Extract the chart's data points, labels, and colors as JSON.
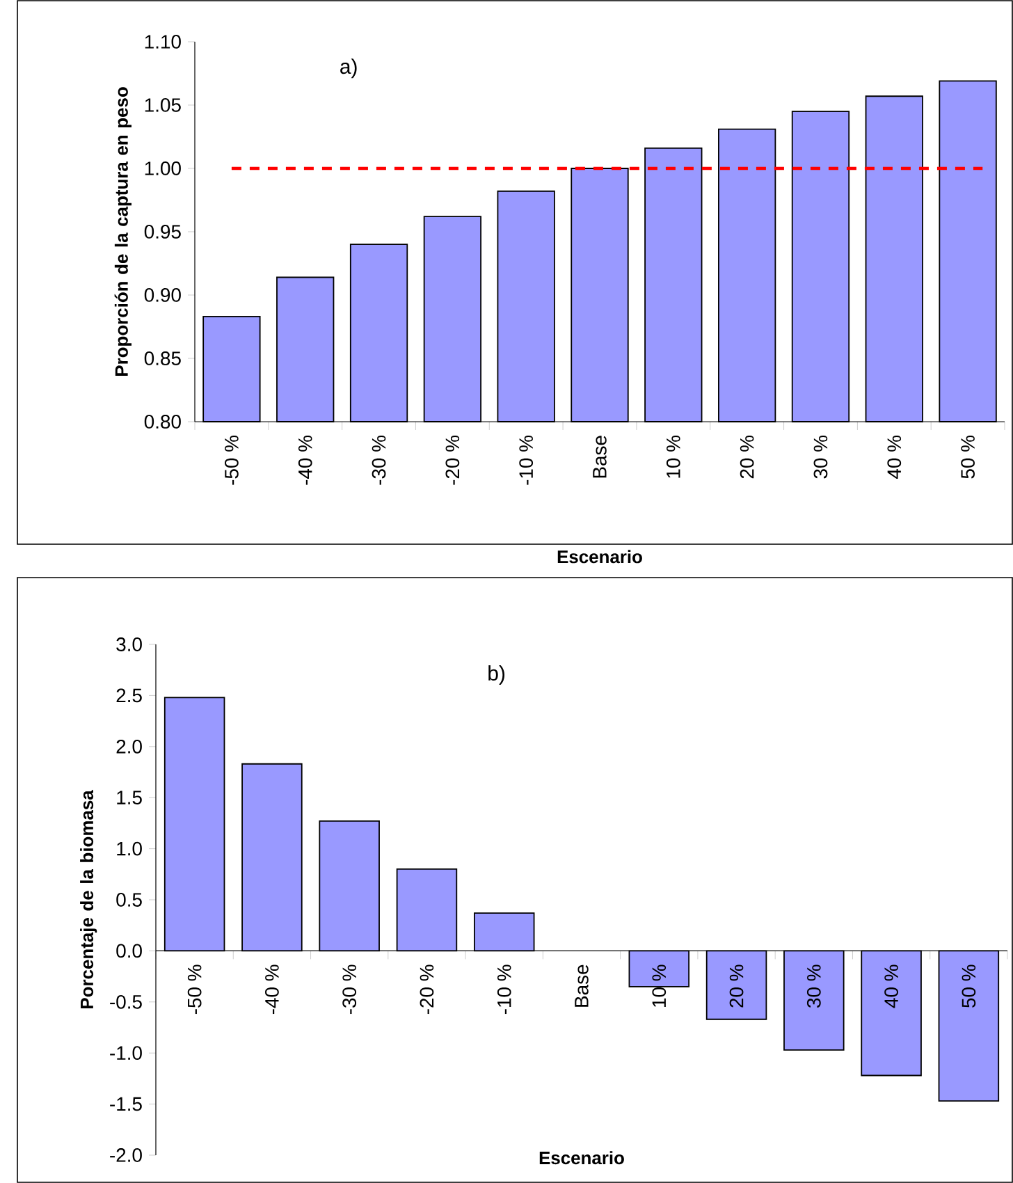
{
  "chart_data": [
    {
      "type": "bar",
      "annotations": [
        "a)"
      ],
      "xlabel": "Escenario",
      "ylabel": "Proporción de la captura en peso",
      "categories": [
        "-50 %",
        "-40 %",
        "-30 %",
        "-20 %",
        "-10 %",
        "Base",
        "10 %",
        "20 %",
        "30 %",
        "40 %",
        "50 %"
      ],
      "values": [
        0.883,
        0.914,
        0.94,
        0.962,
        0.982,
        1.0,
        1.016,
        1.031,
        1.045,
        1.057,
        1.069
      ],
      "color": "#9999ff",
      "ylim": [
        0.8,
        1.1
      ],
      "yticks": [
        {
          "value": 0.8,
          "label": "0.80"
        },
        {
          "value": 0.85,
          "label": "0.85"
        },
        {
          "value": 0.9,
          "label": "0.90"
        },
        {
          "value": 0.95,
          "label": "0.95"
        },
        {
          "value": 1.0,
          "label": "1.00"
        },
        {
          "value": 1.05,
          "label": "1.05"
        },
        {
          "value": 1.1,
          "label": "1.10"
        }
      ],
      "ref_lines": [
        {
          "axis": "y",
          "value": 1.0,
          "color": "#ff0000",
          "line_style": "dashed"
        }
      ]
    },
    {
      "type": "bar",
      "annotations": [
        "b)"
      ],
      "xlabel": "Escenario",
      "ylabel": "Porcentaje de la biomasa",
      "categories": [
        "-50 %",
        "-40 %",
        "-30 %",
        "-20 %",
        "-10 %",
        "Base",
        "10 %",
        "20 %",
        "30 %",
        "40 %",
        "50 %"
      ],
      "values": [
        2.48,
        1.83,
        1.27,
        0.8,
        0.37,
        null,
        -0.35,
        -0.67,
        -0.97,
        -1.22,
        -1.47
      ],
      "color": "#9999ff",
      "ylim": [
        -2.0,
        3.0
      ],
      "yticks": [
        {
          "value": -2.0,
          "label": "-2.0"
        },
        {
          "value": -1.5,
          "label": "-1.5"
        },
        {
          "value": -1.0,
          "label": "-1.0"
        },
        {
          "value": -0.5,
          "label": "-0.5"
        },
        {
          "value": 0.0,
          "label": "0.0"
        },
        {
          "value": 0.5,
          "label": "0.5"
        },
        {
          "value": 1.0,
          "label": "1.0"
        },
        {
          "value": 1.5,
          "label": "1.5"
        },
        {
          "value": 2.0,
          "label": "2.0"
        },
        {
          "value": 2.5,
          "label": "2.5"
        },
        {
          "value": 3.0,
          "label": "3.0"
        }
      ]
    }
  ]
}
